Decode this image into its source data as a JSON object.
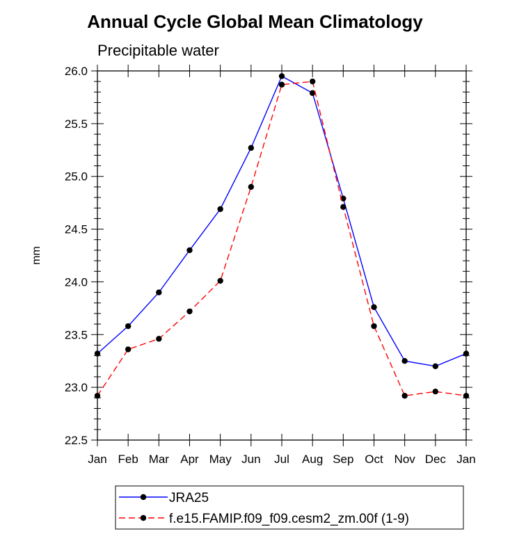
{
  "chart_data": {
    "type": "line",
    "title": "Annual Cycle Global Mean Climatology",
    "subtitle": "Precipitable water",
    "xlabel": "",
    "ylabel": "mm",
    "categories": [
      "Jan",
      "Feb",
      "Mar",
      "Apr",
      "May",
      "Jun",
      "Jul",
      "Aug",
      "Sep",
      "Oct",
      "Nov",
      "Dec",
      "Jan"
    ],
    "ylim": [
      22.5,
      26.0
    ],
    "yticks": [
      "22.5",
      "23.0",
      "23.5",
      "24.0",
      "24.5",
      "25.0",
      "25.5",
      "26.0"
    ],
    "yminor_step": 0.1,
    "grid": false,
    "legend_position": "bottom",
    "series": [
      {
        "name": "JRA25",
        "color": "#0000ff",
        "dash": "solid",
        "marker": "filled-circle",
        "values": [
          23.32,
          23.58,
          23.9,
          24.3,
          24.69,
          25.27,
          25.95,
          25.79,
          24.79,
          23.76,
          23.25,
          23.2,
          23.32
        ]
      },
      {
        "name": "f.e15.FAMIP.f09_f09.cesm2_zm.00f (1-9)",
        "color": "#ff0000",
        "dash": "dashed",
        "marker": "filled-circle",
        "values": [
          22.92,
          23.36,
          23.46,
          23.72,
          24.01,
          24.9,
          25.87,
          25.9,
          24.71,
          23.58,
          22.92,
          22.96,
          22.92
        ]
      }
    ]
  }
}
